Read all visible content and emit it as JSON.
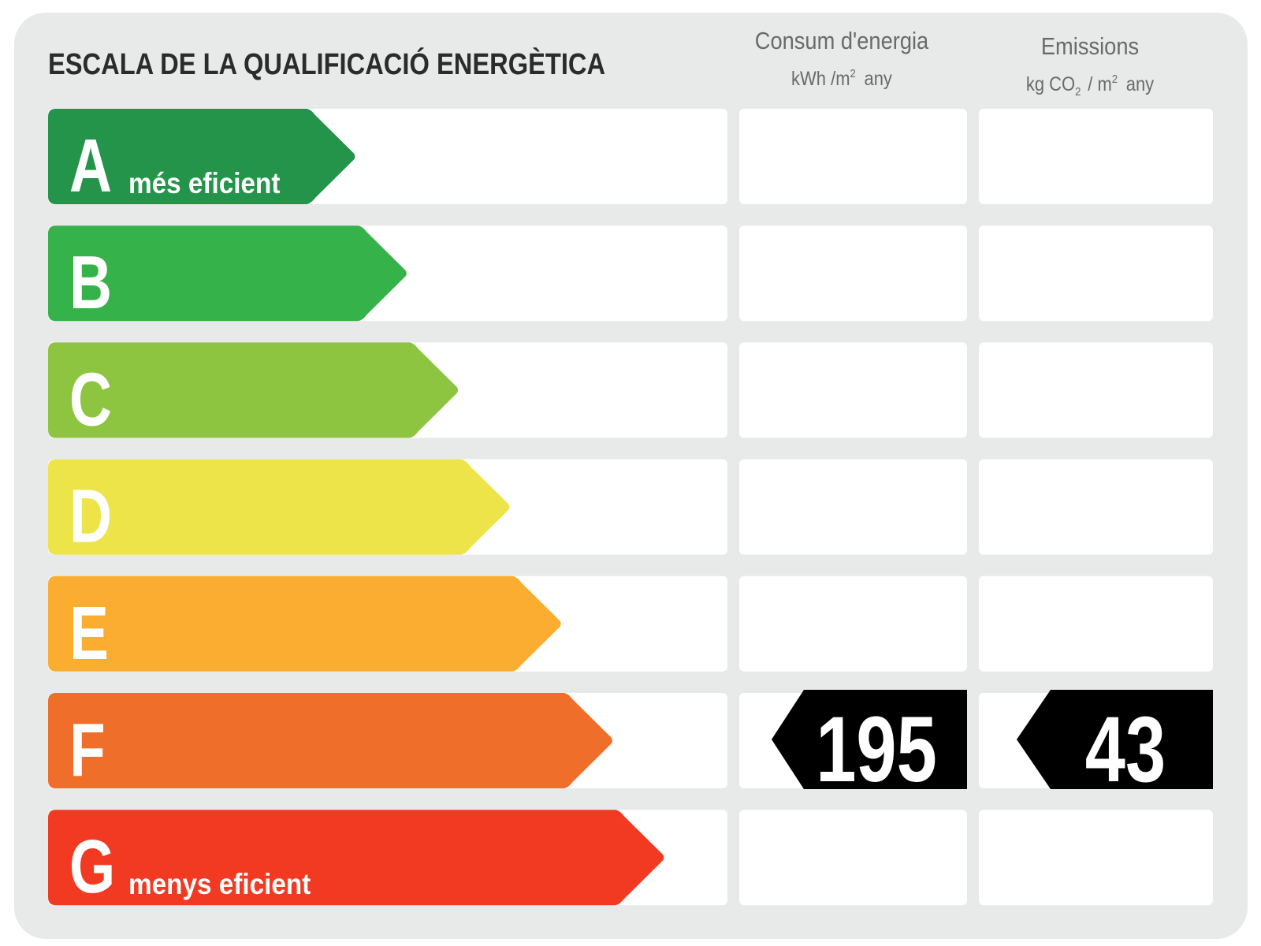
{
  "header": {
    "title": "ESCALA DE LA QUALIFICACIÓ ENERGÈTICA",
    "consumption": {
      "title": "Consum d'energia",
      "unit": [
        "kWh /m",
        "2",
        "any"
      ]
    },
    "emissions": {
      "title": "Emissions",
      "unit": [
        "kg CO",
        "2",
        "/ m",
        "2",
        "any"
      ]
    }
  },
  "rows": [
    {
      "letter": "A",
      "label": "més eficient",
      "color": "#23944a"
    },
    {
      "letter": "B",
      "color": "#36b24a"
    },
    {
      "letter": "C",
      "color": "#8dc540"
    },
    {
      "letter": "D",
      "color": "#ede44a"
    },
    {
      "letter": "E",
      "color": "#fbad32"
    },
    {
      "letter": "F",
      "color": "#ef6e2a"
    },
    {
      "letter": "G",
      "label": "menys eficient",
      "color": "#f13a21"
    }
  ],
  "rating": {
    "letter": "F",
    "consumption": 195,
    "emissions": 43
  }
}
